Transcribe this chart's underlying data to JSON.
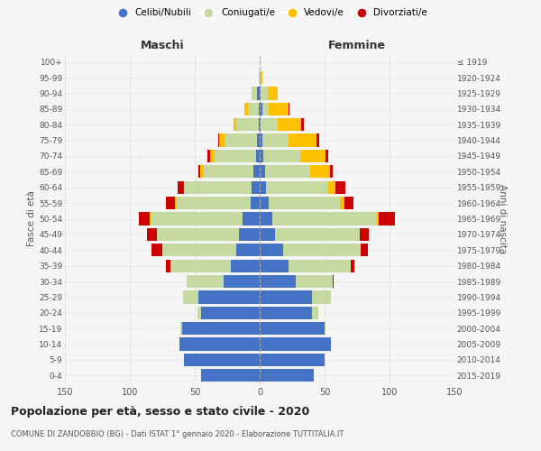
{
  "age_groups": [
    "0-4",
    "5-9",
    "10-14",
    "15-19",
    "20-24",
    "25-29",
    "30-34",
    "35-39",
    "40-44",
    "45-49",
    "50-54",
    "55-59",
    "60-64",
    "65-69",
    "70-74",
    "75-79",
    "80-84",
    "85-89",
    "90-94",
    "95-99",
    "100+"
  ],
  "birth_years": [
    "2015-2019",
    "2010-2014",
    "2005-2009",
    "2000-2004",
    "1995-1999",
    "1990-1994",
    "1985-1989",
    "1980-1984",
    "1975-1979",
    "1970-1974",
    "1965-1969",
    "1960-1964",
    "1955-1959",
    "1950-1954",
    "1945-1949",
    "1940-1944",
    "1935-1939",
    "1930-1934",
    "1925-1929",
    "1920-1924",
    "≤ 1919"
  ],
  "male": {
    "celibi": [
      45,
      58,
      62,
      60,
      45,
      47,
      28,
      22,
      18,
      16,
      13,
      7,
      6,
      5,
      3,
      2,
      1,
      1,
      2,
      0,
      0
    ],
    "coniugati": [
      0,
      0,
      0,
      1,
      3,
      12,
      28,
      47,
      57,
      63,
      71,
      57,
      52,
      38,
      32,
      25,
      17,
      8,
      4,
      1,
      0
    ],
    "vedovi": [
      0,
      0,
      0,
      0,
      0,
      0,
      0,
      0,
      0,
      0,
      1,
      1,
      0,
      3,
      3,
      4,
      2,
      3,
      0,
      0,
      0
    ],
    "divorziati": [
      0,
      0,
      0,
      0,
      0,
      0,
      0,
      3,
      8,
      8,
      8,
      7,
      5,
      1,
      2,
      1,
      0,
      0,
      0,
      0,
      0
    ]
  },
  "female": {
    "nubili": [
      42,
      50,
      55,
      50,
      40,
      40,
      28,
      22,
      18,
      12,
      10,
      7,
      5,
      4,
      3,
      2,
      1,
      2,
      1,
      0,
      0
    ],
    "coniugate": [
      0,
      0,
      0,
      1,
      5,
      15,
      28,
      48,
      60,
      65,
      80,
      55,
      48,
      35,
      28,
      20,
      13,
      5,
      5,
      1,
      0
    ],
    "vedove": [
      0,
      0,
      0,
      0,
      0,
      0,
      0,
      0,
      0,
      0,
      2,
      3,
      5,
      15,
      20,
      22,
      18,
      15,
      8,
      1,
      0
    ],
    "divorziate": [
      0,
      0,
      0,
      0,
      0,
      0,
      1,
      3,
      5,
      7,
      12,
      7,
      8,
      2,
      2,
      2,
      2,
      1,
      0,
      0,
      0
    ]
  },
  "colors": {
    "celibi_nubili": "#4472c4",
    "coniugati_e": "#c5d9a0",
    "vedovi_e": "#ffc000",
    "divorziati_e": "#cc0000"
  },
  "xlim": 150,
  "title": "Popolazione per età, sesso e stato civile - 2020",
  "subtitle": "COMUNE DI ZANDOBBIO (BG) - Dati ISTAT 1° gennaio 2020 - Elaborazione TUTTITALIA.IT",
  "xlabel_left": "Maschi",
  "xlabel_right": "Femmine",
  "ylabel_left": "Fasce di età",
  "ylabel_right": "Anni di nascita",
  "bg_color": "#f5f5f5",
  "grid_color": "#cccccc"
}
